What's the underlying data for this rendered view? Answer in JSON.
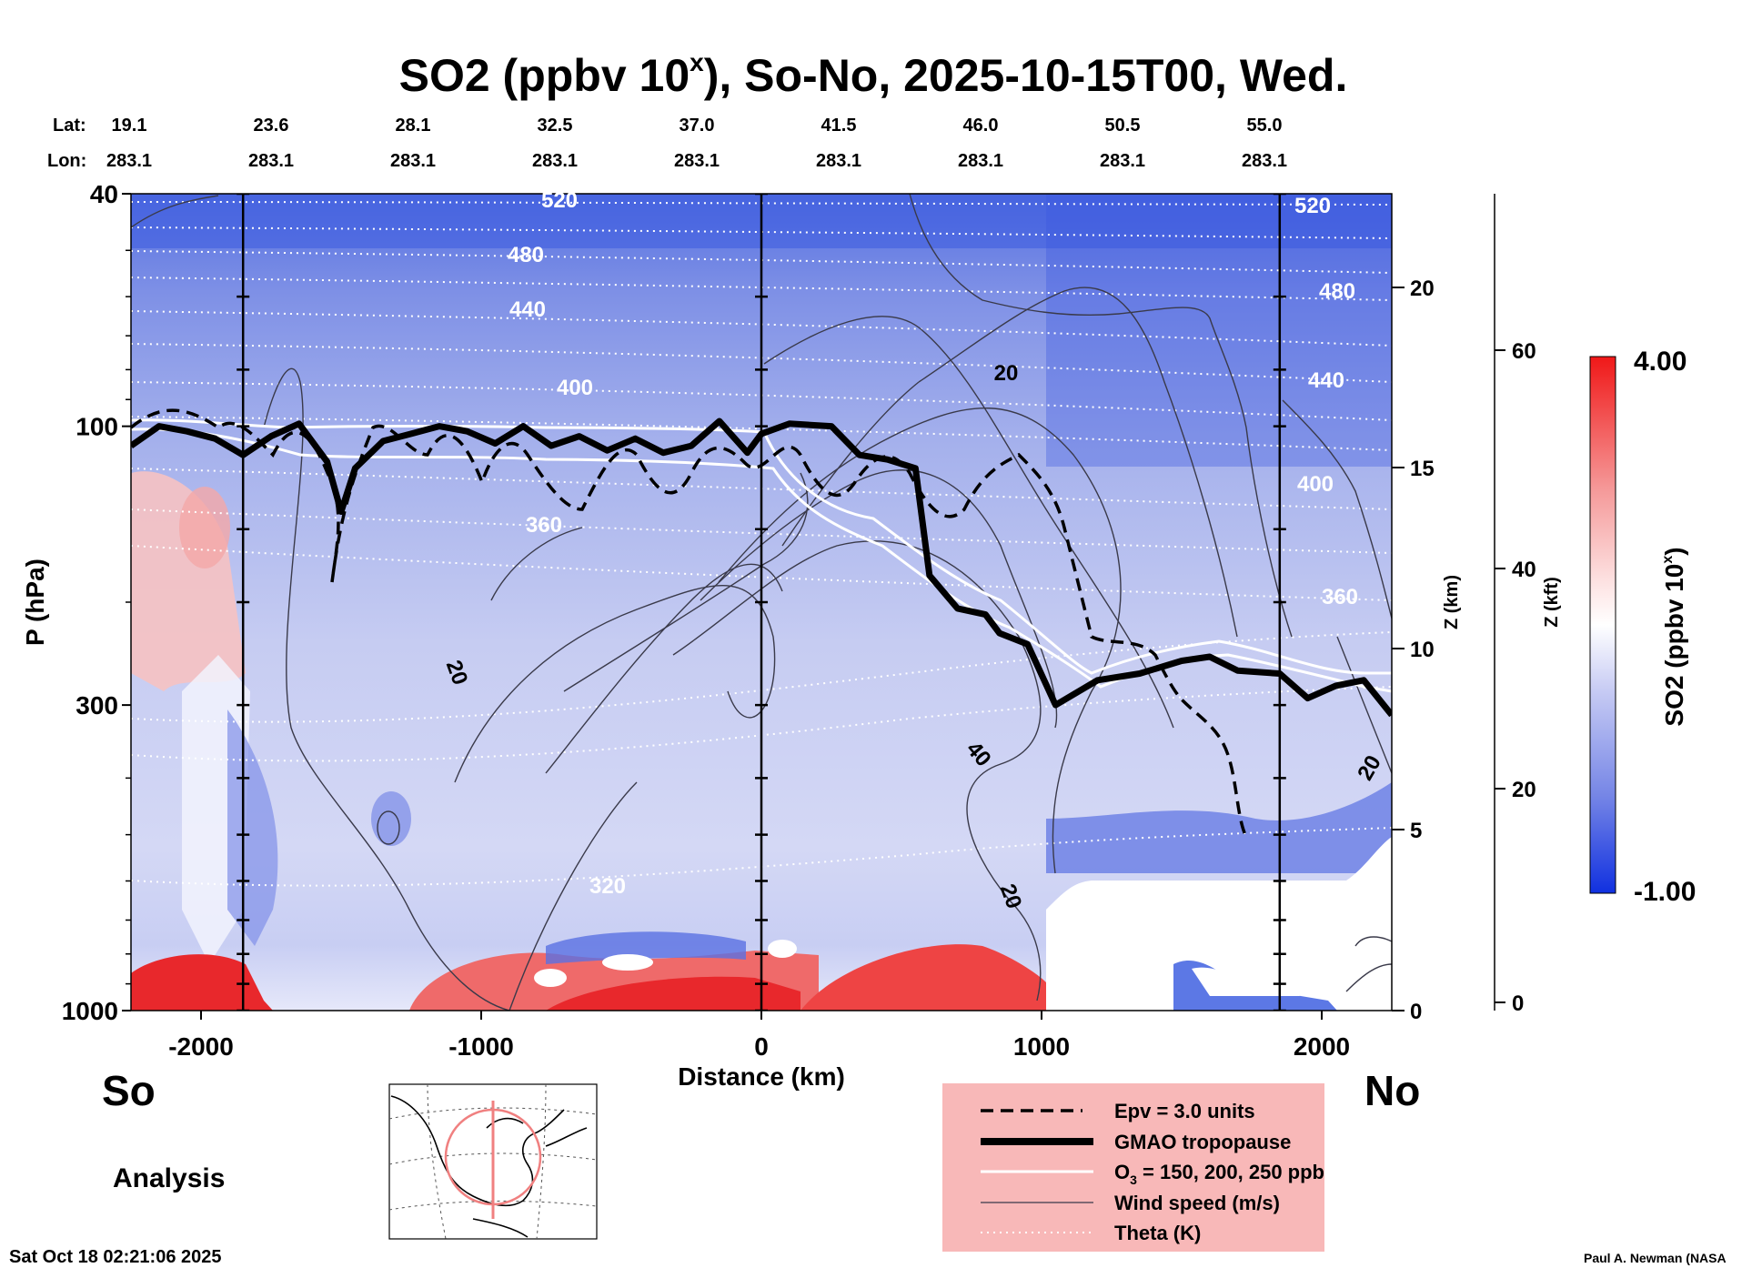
{
  "title_parts": {
    "main": "SO2 (ppbv 10",
    "sup": "x",
    "rest": "), So-No, 2025-10-15T00, Wed."
  },
  "header": {
    "lat_label": "Lat:",
    "lon_label": "Lon:",
    "lats": [
      "19.1",
      "23.6",
      "28.1",
      "32.5",
      "37.0",
      "41.5",
      "46.0",
      "50.5",
      "55.0"
    ],
    "lons": [
      "283.1",
      "283.1",
      "283.1",
      "283.1",
      "283.1",
      "283.1",
      "283.1",
      "283.1",
      "283.1"
    ]
  },
  "chart_data": {
    "type": "heatmap",
    "title": "SO2 (ppbv 10^x), So-No, 2025-10-15T00, Wed.",
    "xlabel": "Distance (km)",
    "ylabel": "P (hPa)",
    "xlim": [
      -2250,
      2250
    ],
    "ylim": [
      1000,
      40
    ],
    "yscale": "log",
    "x_ticks": [
      "-2000",
      "-1000",
      "0",
      "1000",
      "2000"
    ],
    "y_ticks": [
      "40",
      "100",
      "300",
      "1000"
    ],
    "z_km_label": "Z (km)",
    "z_km_ticks": [
      "0",
      "5",
      "10",
      "15",
      "20"
    ],
    "z_kft_label": "Z (kft)",
    "z_kft_ticks": [
      "0",
      "20",
      "40",
      "60"
    ],
    "colorbar": {
      "label_main": "SO2 (ppbv 10",
      "label_sup": "x",
      "label_rest": ")",
      "max": "4.00",
      "min": "-1.00",
      "low_color": "#1030e0",
      "mid_color": "#ffffff",
      "high_color": "#f01818"
    },
    "theta_labels": [
      "520",
      "480",
      "440",
      "400",
      "360",
      "320"
    ],
    "wind_labels": [
      "20",
      "20",
      "40",
      "20",
      "20"
    ],
    "section_lines_km": [
      -1850,
      0,
      1850
    ],
    "tropopause_km_hpa": [
      [
        -2250,
        108
      ],
      [
        -2150,
        100
      ],
      [
        -2050,
        102
      ],
      [
        -1950,
        105
      ],
      [
        -1850,
        112
      ],
      [
        -1750,
        104
      ],
      [
        -1650,
        99
      ],
      [
        -1550,
        115
      ],
      [
        -1500,
        140
      ],
      [
        -1450,
        118
      ],
      [
        -1350,
        106
      ],
      [
        -1250,
        103
      ],
      [
        -1150,
        100
      ],
      [
        -1050,
        102
      ],
      [
        -950,
        107
      ],
      [
        -850,
        100
      ],
      [
        -750,
        108
      ],
      [
        -650,
        104
      ],
      [
        -550,
        110
      ],
      [
        -450,
        105
      ],
      [
        -350,
        111
      ],
      [
        -250,
        108
      ],
      [
        -150,
        98
      ],
      [
        -50,
        111
      ],
      [
        0,
        103
      ],
      [
        100,
        99
      ],
      [
        250,
        100
      ],
      [
        350,
        112
      ],
      [
        450,
        114
      ],
      [
        550,
        118
      ],
      [
        600,
        180
      ],
      [
        700,
        205
      ],
      [
        800,
        210
      ],
      [
        850,
        226
      ],
      [
        950,
        236
      ],
      [
        1050,
        300
      ],
      [
        1200,
        272
      ],
      [
        1350,
        265
      ],
      [
        1500,
        252
      ],
      [
        1600,
        248
      ],
      [
        1700,
        262
      ],
      [
        1850,
        265
      ],
      [
        1950,
        292
      ],
      [
        2050,
        278
      ],
      [
        2150,
        272
      ],
      [
        2250,
        312
      ]
    ],
    "series": [
      {
        "name": "Epv = 3.0 units"
      },
      {
        "name": "GMAO tropopause"
      },
      {
        "name": "O₃ = 150, 200, 250 ppb"
      },
      {
        "name": "Wind speed (m/s)"
      },
      {
        "name": "Theta (K)"
      }
    ]
  },
  "legend": {
    "epv": "Epv = 3.0 units",
    "trop": "GMAO tropopause",
    "o3_pre": "O",
    "o3_sub": "3",
    "o3_post": " = 150, 200, 250 ppb",
    "wind": "Wind speed (m/s)",
    "theta": "Theta (K)",
    "bg_color": "#f8b8b8"
  },
  "labels": {
    "south": "So",
    "north": "No",
    "analysis": "Analysis",
    "timestamp": "Sat Oct 18 02:21:06 2025",
    "credit": "Paul A. Newman (NASA"
  }
}
